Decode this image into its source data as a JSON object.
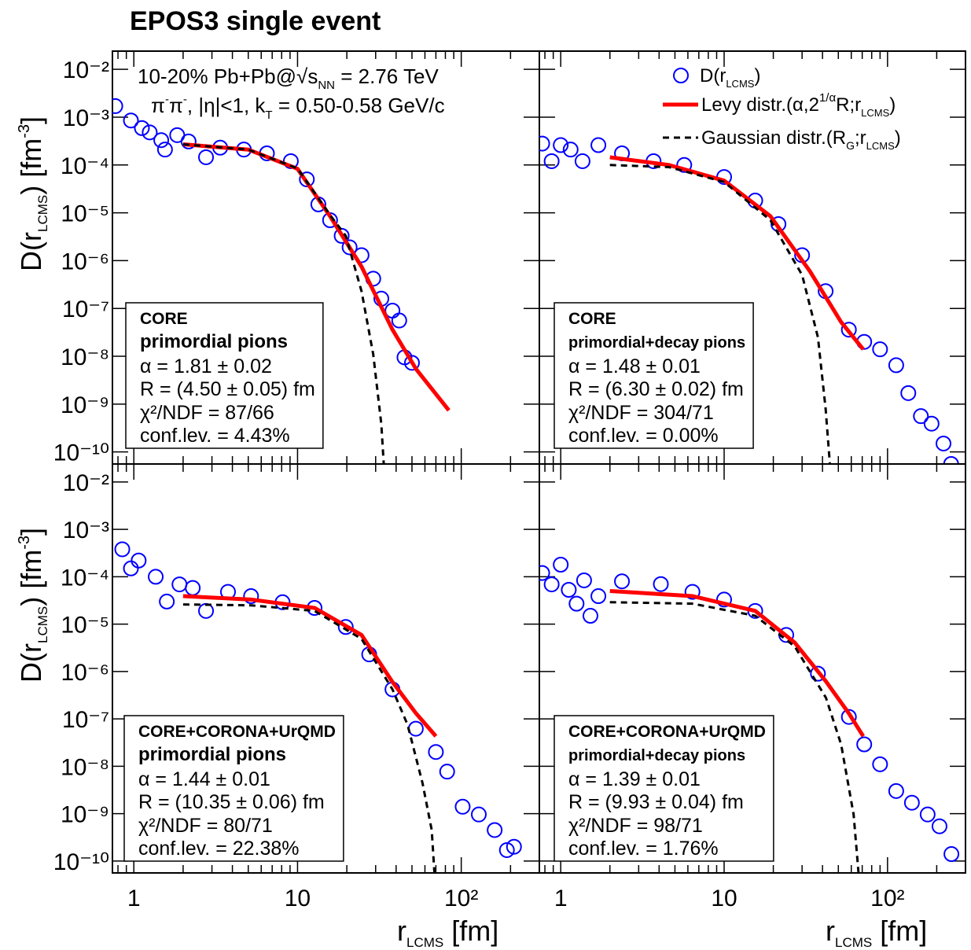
{
  "figure": {
    "title": "EPOS3 single event",
    "x_label": [
      "r",
      "LCMS",
      " [fm]"
    ],
    "y_label": [
      "D(r",
      "LCMS",
      ") [fm",
      "-3",
      "]"
    ],
    "annotation": [
      [
        "10-20% Pb+Pb@",
        "√",
        "s",
        "NN",
        " = 2.76 TeV"
      ],
      [
        "π",
        "-",
        "π",
        "-",
        ", |η|<1, k",
        "T",
        " = 0.50-0.58 GeV/c"
      ]
    ],
    "legend": [
      [
        "D(r",
        "LCMS",
        ")"
      ],
      [
        "Levy distr.(α,2",
        "1/α",
        "R;r",
        "LCMS",
        ")"
      ],
      [
        "Gaussian distr.(R",
        "G",
        ";r",
        "LCMS",
        ")"
      ]
    ]
  },
  "chart_data": [
    {
      "type": "scatter",
      "log_x": true,
      "log_y": true,
      "xlim": [
        0.74,
        300
      ],
      "ylim": [
        5.6e-11,
        0.024
      ],
      "xticks": [
        1,
        10,
        100
      ],
      "x_tick_labels": false,
      "yticks": [
        {
          "value": 0.01,
          "label": "10⁻²"
        },
        {
          "value": 0.001,
          "label": "10⁻³"
        },
        {
          "value": 0.0001,
          "label": "10⁻⁴"
        },
        {
          "value": 1e-05,
          "label": "10⁻⁵"
        },
        {
          "value": 1e-06,
          "label": "10⁻⁶"
        },
        {
          "value": 1e-07,
          "label": "10⁻⁷"
        },
        {
          "value": 1e-08,
          "label": "10⁻⁸"
        },
        {
          "value": 1e-09,
          "label": "10⁻⁹"
        },
        {
          "value": 1e-10,
          "label": "10⁻¹⁰"
        }
      ],
      "y_tick_labels": true,
      "box": [
        "CORE",
        "primordial pions",
        "α = 1.81 ± 0.02",
        "R = (4.50 ± 0.05) fm",
        "χ²/NDF = 87/66",
        "conf.lev. = 4.43%"
      ],
      "series": [
        {
          "type": "scatter",
          "color": "#0000ff",
          "x": [
            0.77,
            0.96,
            1.12,
            1.25,
            1.47,
            1.55,
            1.84,
            2.16,
            2.76,
            3.37,
            4.7,
            6.5,
            9.1,
            11.4,
            13.4,
            15.8,
            18.6,
            20.8,
            24.6,
            29,
            32.5,
            38,
            41.8,
            45,
            50
          ],
          "values": [
            0.0017,
            0.00085,
            0.00059,
            0.00048,
            0.00033,
            0.00021,
            0.00042,
            0.00031,
            0.000145,
            0.00023,
            0.00021,
            0.000175,
            0.00012,
            5e-05,
            1.5e-05,
            7e-06,
            3.3e-06,
            1.9e-06,
            1.3e-06,
            4.2e-07,
            1.6e-07,
            9e-08,
            5.6e-08,
            9.5e-09,
            7.3e-09
          ]
        },
        {
          "type": "line",
          "color": "#ff0000",
          "x": [
            2,
            5,
            10,
            15.8,
            24.6,
            38,
            53,
            84
          ],
          "values": [
            0.00027,
            0.00021,
            8.3e-05,
            8.5e-06,
            7.5e-07,
            3.6e-08,
            5.4e-09,
            7.4e-10
          ]
        },
        {
          "type": "line",
          "color": "#000000",
          "dash": true,
          "x": [
            2,
            5,
            10,
            15.8,
            19.7,
            24.6,
            29,
            32.5,
            34
          ],
          "values": [
            0.00027,
            0.00021,
            8.5e-05,
            9e-06,
            3.3e-06,
            2.3e-07,
            1.1e-08,
            3.8e-10,
            3e-11
          ]
        }
      ]
    },
    {
      "type": "scatter",
      "log_x": true,
      "log_y": true,
      "xlim": [
        0.74,
        300
      ],
      "ylim": [
        5.6e-11,
        0.024
      ],
      "xticks": [
        1,
        10,
        100
      ],
      "x_tick_labels": false,
      "yticks": [
        0.01,
        0.001,
        0.0001,
        1e-05,
        1e-06,
        1e-07,
        1e-08,
        1e-09,
        1e-10
      ],
      "y_tick_labels": false,
      "box": [
        "CORE",
        "primordial+decay pions",
        "α = 1.48 ± 0.01",
        "R = (6.30 ± 0.02) fm",
        "χ²/NDF = 304/71",
        "conf.lev. = 0.00%"
      ],
      "series": [
        {
          "type": "scatter",
          "color": "#0000ff",
          "x": [
            0.77,
            0.88,
            1,
            1.15,
            1.36,
            1.7,
            2.37,
            3.7,
            5.7,
            10,
            15.5,
            21.5,
            30,
            41.8,
            58,
            72,
            90,
            113,
            134,
            160,
            186,
            220,
            245
          ],
          "values": [
            0.00028,
            0.00012,
            0.00026,
            0.00021,
            0.00012,
            0.00026,
            0.000175,
            0.00012,
            0.0001,
            5.6e-05,
            1.8e-05,
            5.8e-06,
            1.3e-06,
            2.3e-07,
            3.6e-08,
            2e-08,
            1.4e-08,
            6.5e-09,
            1.7e-09,
            5.6e-10,
            3.9e-10,
            1.5e-10,
            5.6e-11
          ]
        },
        {
          "type": "line",
          "color": "#ff0000",
          "x": [
            2,
            4.6,
            10,
            19.2,
            33.5,
            52,
            71
          ],
          "values": [
            0.000145,
            0.0001,
            4.7e-05,
            8.5e-06,
            6e-07,
            5.2e-08,
            1.4e-08
          ]
        },
        {
          "type": "line",
          "color": "#000000",
          "dash": true,
          "x": [
            2,
            4.6,
            10,
            19.2,
            30,
            37.5,
            41.8,
            45
          ],
          "values": [
            0.0001,
            9e-05,
            4.4e-05,
            7e-06,
            5e-07,
            2.5e-08,
            8e-10,
            3e-11
          ]
        }
      ]
    },
    {
      "type": "scatter",
      "log_x": true,
      "log_y": true,
      "xlim": [
        0.74,
        300
      ],
      "ylim": [
        5.6e-11,
        0.024
      ],
      "xticks": [
        1,
        10,
        {
          "value": 100,
          "label": "10²"
        }
      ],
      "x_tick_labels": true,
      "yticks": [
        {
          "value": 0.01,
          "label": "10⁻²"
        },
        {
          "value": 0.001,
          "label": "10⁻³"
        },
        {
          "value": 0.0001,
          "label": "10⁻⁴"
        },
        {
          "value": 1e-05,
          "label": "10⁻⁵"
        },
        {
          "value": 1e-06,
          "label": "10⁻⁶"
        },
        {
          "value": 1e-07,
          "label": "10⁻⁷"
        },
        {
          "value": 1e-08,
          "label": "10⁻⁸"
        },
        {
          "value": 1e-09,
          "label": "10⁻⁹"
        },
        {
          "value": 1e-10,
          "label": "10⁻¹⁰"
        }
      ],
      "y_tick_labels": true,
      "box": [
        "CORE+CORONA+UrQMD",
        "primordial pions",
        "α = 1.44 ± 0.01",
        "R = (10.35 ± 0.06) fm",
        "χ²/NDF = 80/71",
        "conf.lev. = 22.38%"
      ],
      "series": [
        {
          "type": "scatter",
          "color": "#0000ff",
          "x": [
            0.85,
            0.96,
            1.07,
            1.36,
            1.59,
            1.9,
            2.29,
            2.76,
            3.76,
            5.2,
            8.1,
            12.7,
            19.7,
            27.4,
            38,
            52.8,
            70,
            82,
            102,
            128,
            160,
            190,
            210
          ],
          "values": [
            0.00038,
            0.00015,
            0.00022,
            0.0001,
            3e-05,
            6.9e-05,
            5.8e-05,
            1.9e-05,
            4.8e-05,
            3.9e-05,
            2.9e-05,
            2.2e-05,
            8.7e-06,
            2.3e-06,
            4.2e-07,
            6.2e-08,
            2e-08,
            7.7e-09,
            1.4e-09,
            9.6e-10,
            4.5e-10,
            1.7e-10,
            2e-10
          ]
        },
        {
          "type": "line",
          "color": "#ff0000",
          "x": [
            2,
            5.2,
            12.7,
            24.6,
            38,
            53,
            70
          ],
          "values": [
            3.9e-05,
            3.3e-05,
            2.2e-05,
            5.9e-06,
            6e-07,
            1.3e-07,
            4.3e-08
          ]
        },
        {
          "type": "line",
          "color": "#000000",
          "dash": true,
          "x": [
            2,
            5.2,
            12.7,
            24.6,
            38,
            47,
            58,
            66,
            69
          ],
          "values": [
            2.6e-05,
            2.5e-05,
            1.9e-05,
            4.9e-06,
            4.2e-07,
            7.5e-08,
            4.4e-09,
            4.5e-10,
            4e-11
          ]
        }
      ]
    },
    {
      "type": "scatter",
      "log_x": true,
      "log_y": true,
      "xlim": [
        0.74,
        300
      ],
      "ylim": [
        5.6e-11,
        0.024
      ],
      "xticks": [
        1,
        10,
        {
          "value": 100,
          "label": "10²"
        }
      ],
      "x_tick_labels": true,
      "yticks": [
        0.01,
        0.001,
        0.0001,
        1e-05,
        1e-06,
        1e-07,
        1e-08,
        1e-09,
        1e-10
      ],
      "y_tick_labels": false,
      "box": [
        "CORE+CORONA+UrQMD",
        "primordial+decay pions",
        "α = 1.39 ± 0.01",
        "R = (9.93 ± 0.04) fm",
        "χ²/NDF = 98/71",
        "conf.lev. = 1.76%"
      ],
      "series": [
        {
          "type": "scatter",
          "color": "#0000ff",
          "x": [
            0.77,
            0.88,
            1,
            1.12,
            1.25,
            1.39,
            1.52,
            1.7,
            2.37,
            4.1,
            6.4,
            10,
            15.5,
            24,
            37.5,
            58,
            72,
            90,
            113,
            141,
            176,
            208,
            246
          ],
          "values": [
            0.00012,
            6.9e-05,
            0.00018,
            5.3e-05,
            2.7e-05,
            8.4e-05,
            1.5e-05,
            3.9e-05,
            8e-05,
            7e-05,
            4.8e-05,
            3.3e-05,
            1.9e-05,
            5.9e-06,
            9e-07,
            1.1e-07,
            2.9e-08,
            1.1e-08,
            3e-09,
            1.7e-09,
            9.6e-10,
            5.4e-10,
            1.4e-10
          ]
        },
        {
          "type": "line",
          "color": "#ff0000",
          "x": [
            2,
            6.4,
            15.5,
            27,
            42,
            58,
            71
          ],
          "values": [
            5e-05,
            3.9e-05,
            1.9e-05,
            4.1e-06,
            6.2e-07,
            1.3e-07,
            4.3e-08
          ]
        },
        {
          "type": "line",
          "color": "#000000",
          "dash": true,
          "x": [
            2,
            6.4,
            15.5,
            27,
            42,
            52,
            62,
            67
          ],
          "values": [
            2.9e-05,
            2.7e-05,
            1.5e-05,
            3.4e-06,
            2.8e-07,
            2.9e-08,
            9.6e-10,
            4e-11
          ]
        }
      ]
    }
  ]
}
